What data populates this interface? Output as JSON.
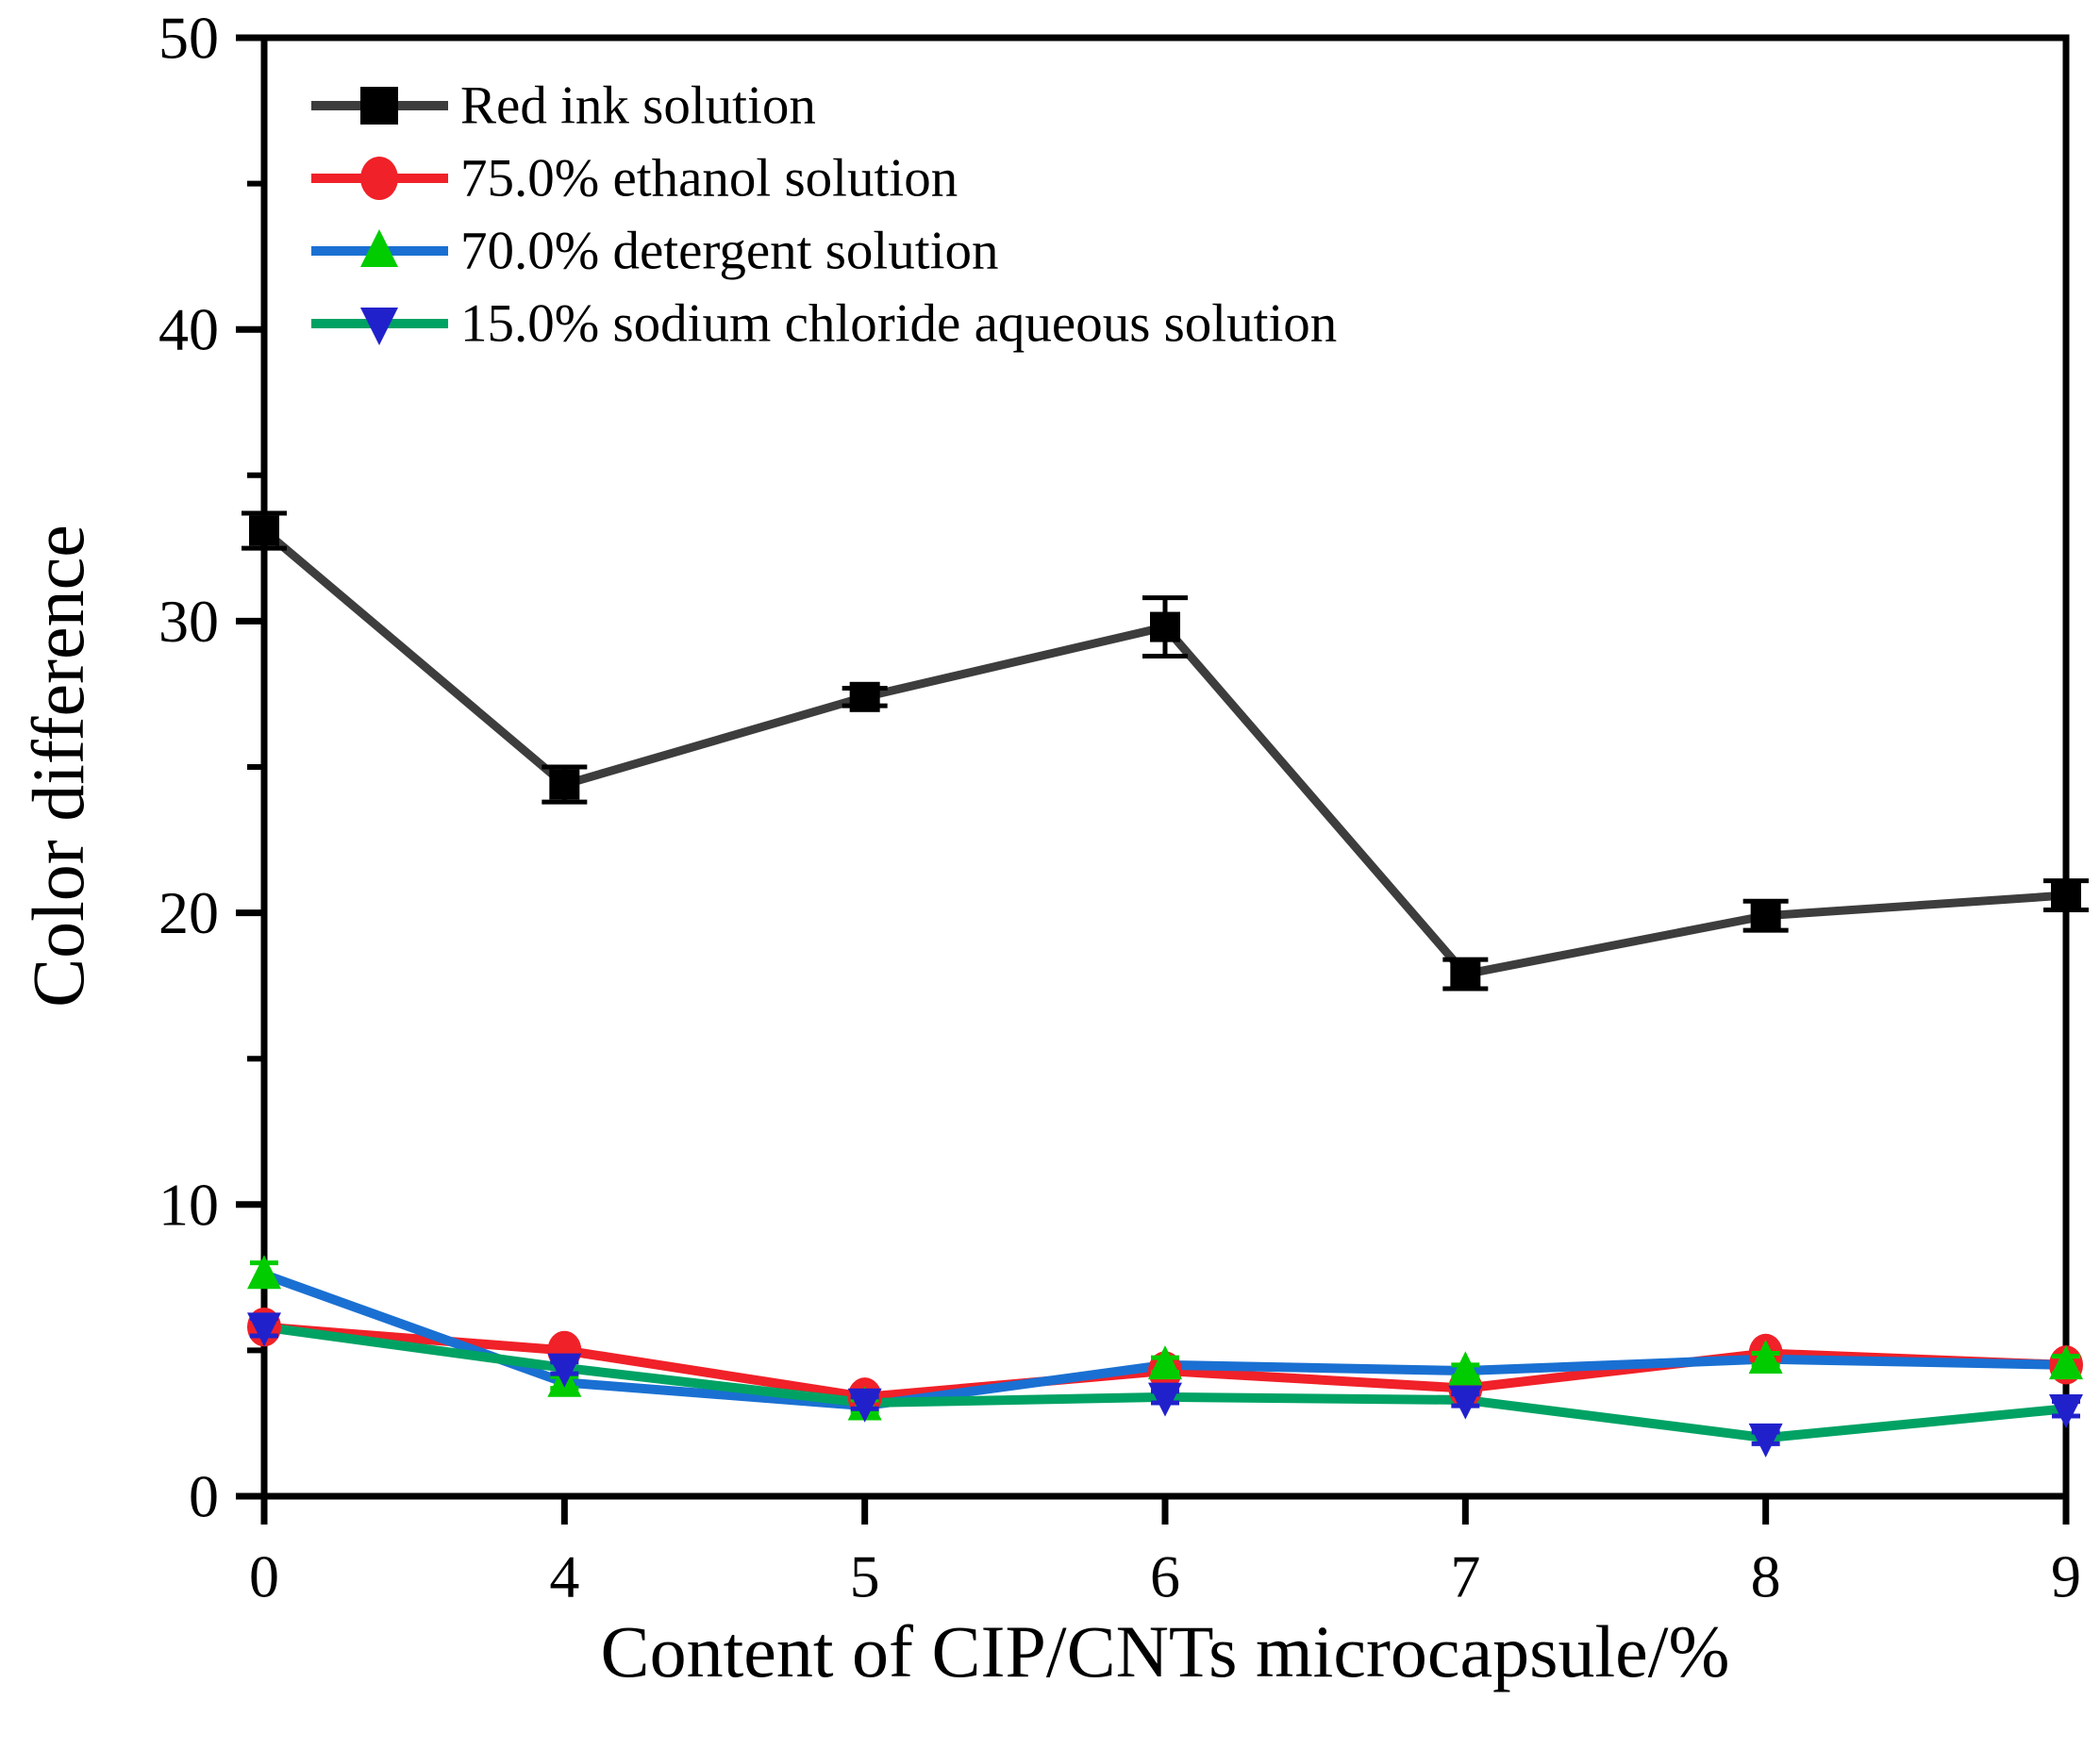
{
  "chart_data": {
    "type": "line",
    "title": "",
    "xlabel": "Content of CIP/CNTs microcapsule/%",
    "ylabel": "Color difference",
    "x_values": [
      0,
      4,
      5,
      6,
      7,
      8,
      9
    ],
    "x_tick_labels": [
      "0",
      "4",
      "5",
      "6",
      "7",
      "8",
      "9"
    ],
    "ylim": [
      0,
      50
    ],
    "y_major_ticks": [
      0,
      10,
      20,
      30,
      40,
      50
    ],
    "y_minor_ticks": [
      5,
      15,
      25,
      35,
      45
    ],
    "grid": "off",
    "legend_position": "top-left-inside",
    "frame": "full-box",
    "axis_color": "#000000",
    "series": [
      {
        "name": "Red ink solution",
        "line_color": "#3d3d3d",
        "marker": "square",
        "marker_color": "#000000",
        "values": [
          33.1,
          24.4,
          27.4,
          29.8,
          17.9,
          19.9,
          20.6
        ],
        "errors": [
          0.6,
          0.6,
          0.3,
          1.0,
          0.5,
          0.5,
          0.5
        ]
      },
      {
        "name": "75.0% ethanol solution",
        "line_color": "#f02128",
        "marker": "circle",
        "marker_color": "#f02128",
        "values": [
          5.8,
          5.0,
          3.4,
          4.3,
          3.7,
          4.9,
          4.5
        ],
        "errors": [
          0.3,
          0.25,
          0.2,
          0.2,
          0.2,
          0.25,
          0.3
        ]
      },
      {
        "name": "70.0% detergent solution",
        "line_color": "#1a70d2",
        "marker": "triangle-up",
        "marker_color": "#00cc00",
        "values": [
          7.6,
          3.9,
          3.1,
          4.5,
          4.3,
          4.7,
          4.5
        ],
        "errors": [
          0.4,
          0.2,
          0.2,
          0.25,
          0.2,
          0.2,
          0.3
        ]
      },
      {
        "name": "15.0% sodium chloride aqueous solution",
        "line_color": "#00a264",
        "marker": "triangle-down",
        "marker_color": "#2121cc",
        "values": [
          5.8,
          4.4,
          3.2,
          3.4,
          3.3,
          2.0,
          3.0
        ],
        "errors": [
          0.3,
          0.2,
          0.2,
          0.2,
          0.2,
          0.2,
          0.25
        ]
      }
    ]
  }
}
